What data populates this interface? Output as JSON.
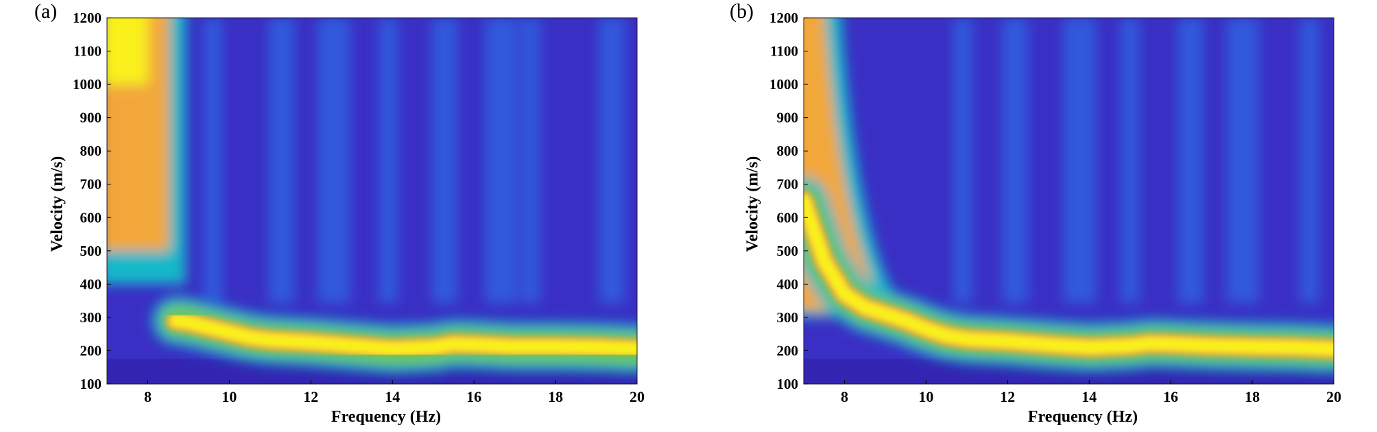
{
  "chart_data": [
    {
      "type": "heatmap",
      "panel_label": "(a)",
      "xlabel": "Frequency (Hz)",
      "ylabel": "Velocity (m/s)",
      "xlim": [
        7,
        20
      ],
      "ylim": [
        100,
        1200
      ],
      "xticks": [
        8,
        10,
        12,
        14,
        16,
        18,
        20
      ],
      "yticks": [
        100,
        200,
        300,
        400,
        500,
        600,
        700,
        800,
        900,
        1000,
        1100,
        1200
      ],
      "colormap": "parula",
      "ridge": {
        "frequency": [
          8.7,
          9.0,
          9.5,
          10.0,
          10.5,
          11,
          12,
          13,
          14,
          15,
          15.5,
          16,
          17,
          18,
          19,
          20
        ],
        "velocity": [
          290,
          285,
          270,
          255,
          240,
          232,
          225,
          215,
          205,
          210,
          220,
          218,
          212,
          212,
          210,
          205
        ]
      },
      "low_frequency_high_energy_band": {
        "frequency_range": [
          7,
          8.6
        ],
        "velocity_range": [
          500,
          1200
        ]
      }
    },
    {
      "type": "heatmap",
      "panel_label": "(b)",
      "xlabel": "Frequency (Hz)",
      "ylabel": "Velocity (m/s)",
      "xlim": [
        7,
        20
      ],
      "ylim": [
        100,
        1200
      ],
      "xticks": [
        8,
        10,
        12,
        14,
        16,
        18,
        20
      ],
      "yticks": [
        100,
        200,
        300,
        400,
        500,
        600,
        700,
        800,
        900,
        1000,
        1100,
        1200
      ],
      "colormap": "parula",
      "ridge": {
        "frequency": [
          7,
          7.5,
          8,
          8.5,
          9,
          9.5,
          10,
          10.5,
          11,
          12,
          13,
          14,
          15,
          15.5,
          16,
          17,
          18,
          19,
          20
        ],
        "velocity": [
          650,
          470,
          370,
          330,
          310,
          290,
          265,
          245,
          235,
          228,
          218,
          210,
          215,
          222,
          220,
          215,
          212,
          210,
          205
        ]
      }
    }
  ],
  "colors": {
    "background_low": "#3a2fc4",
    "mid": "#2c7cf0",
    "cyan": "#17b8c9",
    "green": "#6fc64f",
    "orange": "#f2a73a",
    "yellow": "#f9f01a"
  }
}
